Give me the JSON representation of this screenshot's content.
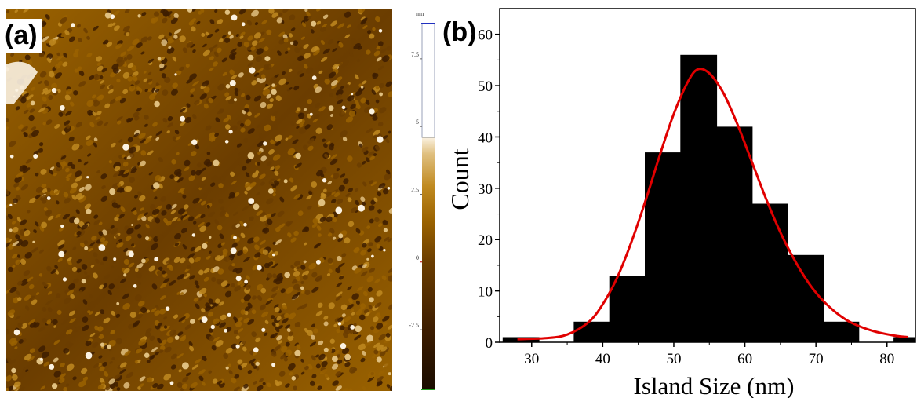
{
  "panels": {
    "a": {
      "label": "(a)"
    },
    "b": {
      "label": "(b)"
    }
  },
  "afm_image": {
    "colormap": [
      "#1a0c00",
      "#3d1d00",
      "#6b3d00",
      "#9a6200",
      "#c08a20",
      "#e0c080",
      "#fbf2e2",
      "#ffffff"
    ]
  },
  "scalebar": {
    "unit": "nm",
    "ticks": [
      "7.5",
      "5",
      "2.5",
      "0",
      "-2.5"
    ],
    "tick_values": [
      7.5,
      5,
      2.5,
      0,
      -2.5
    ],
    "range": [
      -4.7,
      8.8
    ],
    "cursor_value": 4.6
  },
  "chart_data": {
    "type": "bar",
    "subtype": "histogram",
    "xlabel": "Island Size (nm)",
    "ylabel": "Count",
    "xlim": [
      25.5,
      84
    ],
    "ylim": [
      0,
      65
    ],
    "xticks": [
      30,
      40,
      50,
      60,
      70,
      80
    ],
    "yticks": [
      0,
      10,
      20,
      30,
      40,
      50,
      60
    ],
    "bin_width": 5.5,
    "bins": [
      {
        "center": 28.5,
        "value": 1
      },
      {
        "center": 33.5,
        "value": 0
      },
      {
        "center": 38.5,
        "value": 4
      },
      {
        "center": 43.5,
        "value": 13
      },
      {
        "center": 48.5,
        "value": 37
      },
      {
        "center": 53.5,
        "value": 56
      },
      {
        "center": 58.5,
        "value": 42
      },
      {
        "center": 63.5,
        "value": 27
      },
      {
        "center": 68.5,
        "value": 17
      },
      {
        "center": 73.5,
        "value": 4
      },
      {
        "center": 78.5,
        "value": 0
      },
      {
        "center": 83.5,
        "value": 1
      }
    ],
    "bar_color": "#000000",
    "fit": {
      "type": "lognormal-like fit curve",
      "color": "#e00000",
      "peak_x": 53.4,
      "peak_y": 53.2,
      "points": [
        [
          28,
          0.6
        ],
        [
          32,
          0.8
        ],
        [
          35,
          1.5
        ],
        [
          38,
          3.9
        ],
        [
          40,
          7.4
        ],
        [
          42,
          12.5
        ],
        [
          44,
          19.4
        ],
        [
          46,
          27.5
        ],
        [
          48,
          36.3
        ],
        [
          50,
          44.5
        ],
        [
          52,
          50.8
        ],
        [
          53.4,
          53.2
        ],
        [
          55,
          52.4
        ],
        [
          57,
          48.5
        ],
        [
          59,
          42.3
        ],
        [
          61,
          35.1
        ],
        [
          63,
          27.9
        ],
        [
          65,
          21.4
        ],
        [
          67,
          16
        ],
        [
          69,
          11.5
        ],
        [
          71,
          8.1
        ],
        [
          73,
          5.6
        ],
        [
          75,
          3.8
        ],
        [
          78,
          2.2
        ],
        [
          81,
          1.3
        ],
        [
          83,
          1
        ]
      ]
    }
  }
}
